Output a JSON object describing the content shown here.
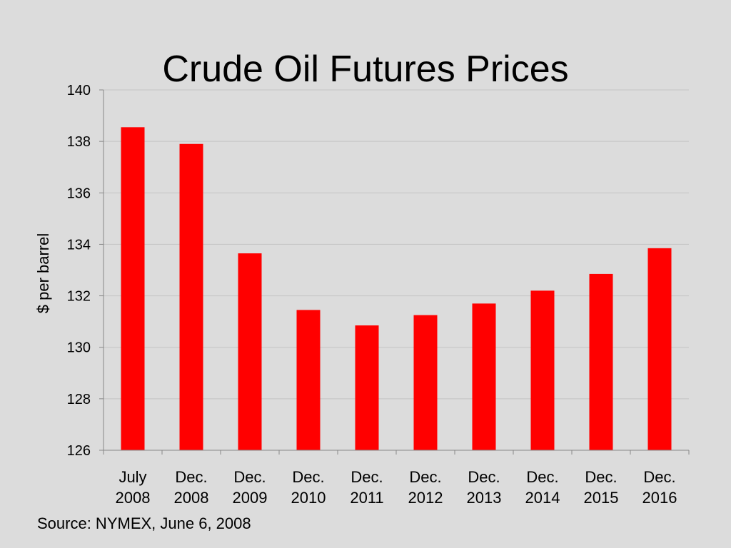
{
  "title": "Crude Oil Futures Prices",
  "source_note": "Source: NYMEX, June 6, 2008",
  "colors": {
    "bar": "#ff0000",
    "background": "#dcdcdc",
    "grid": "#c4c4c4"
  },
  "chart_data": {
    "type": "bar",
    "title": "Crude Oil Futures Prices",
    "categories": [
      [
        "July",
        "2008"
      ],
      [
        "Dec.",
        "2008"
      ],
      [
        "Dec.",
        "2009"
      ],
      [
        "Dec.",
        "2010"
      ],
      [
        "Dec.",
        "2011"
      ],
      [
        "Dec.",
        "2012"
      ],
      [
        "Dec.",
        "2013"
      ],
      [
        "Dec.",
        "2014"
      ],
      [
        "Dec.",
        "2015"
      ],
      [
        "Dec.",
        "2016"
      ]
    ],
    "values": [
      138.55,
      137.9,
      133.65,
      131.45,
      130.85,
      131.25,
      131.7,
      132.2,
      132.85,
      133.85
    ],
    "xlabel": "",
    "ylabel": "$ per barrel",
    "ylim": [
      126,
      140
    ],
    "yticks": [
      "126",
      "128",
      "130",
      "132",
      "134",
      "136",
      "138",
      "140"
    ],
    "grid": true,
    "legend": "none"
  }
}
